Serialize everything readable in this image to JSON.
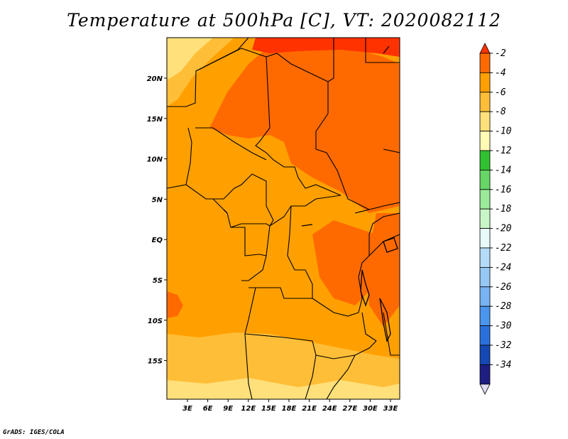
{
  "title": "Temperature at 500hPa [C], VT: 2020082112",
  "credit": "GrADS: IGES/COLA",
  "map": {
    "lat_labels": [
      "20N",
      "15N",
      "10N",
      "5N",
      "EQ",
      "5S",
      "10S",
      "15S"
    ],
    "lon_labels": [
      "3E",
      "6E",
      "9E",
      "12E",
      "15E",
      "18E",
      "21E",
      "24E",
      "27E",
      "30E",
      "33E"
    ],
    "colors": {
      "mid": "#ffa000",
      "warm": "#ff6a00",
      "warmest": "#ff3200",
      "cool": "#ffbe38",
      "cooler": "#ffe07a",
      "border": "#000000"
    }
  },
  "colorbar": {
    "labels": [
      "-2",
      "-4",
      "-6",
      "-8",
      "-10",
      "-12",
      "-14",
      "-16",
      "-18",
      "-20",
      "-22",
      "-24",
      "-26",
      "-28",
      "-30",
      "-32",
      "-34"
    ],
    "colors": [
      "#ff3200",
      "#ff6a00",
      "#ffa000",
      "#ffbe38",
      "#ffe07a",
      "#fffab4",
      "#30c030",
      "#66d666",
      "#9aea9a",
      "#c8f6c8",
      "#e8fafa",
      "#b4dcf8",
      "#96c8f6",
      "#78b4f4",
      "#4a96ee",
      "#2a70dc",
      "#1448b4",
      "#1e1e82"
    ],
    "end_low": "#e0dcf4"
  }
}
